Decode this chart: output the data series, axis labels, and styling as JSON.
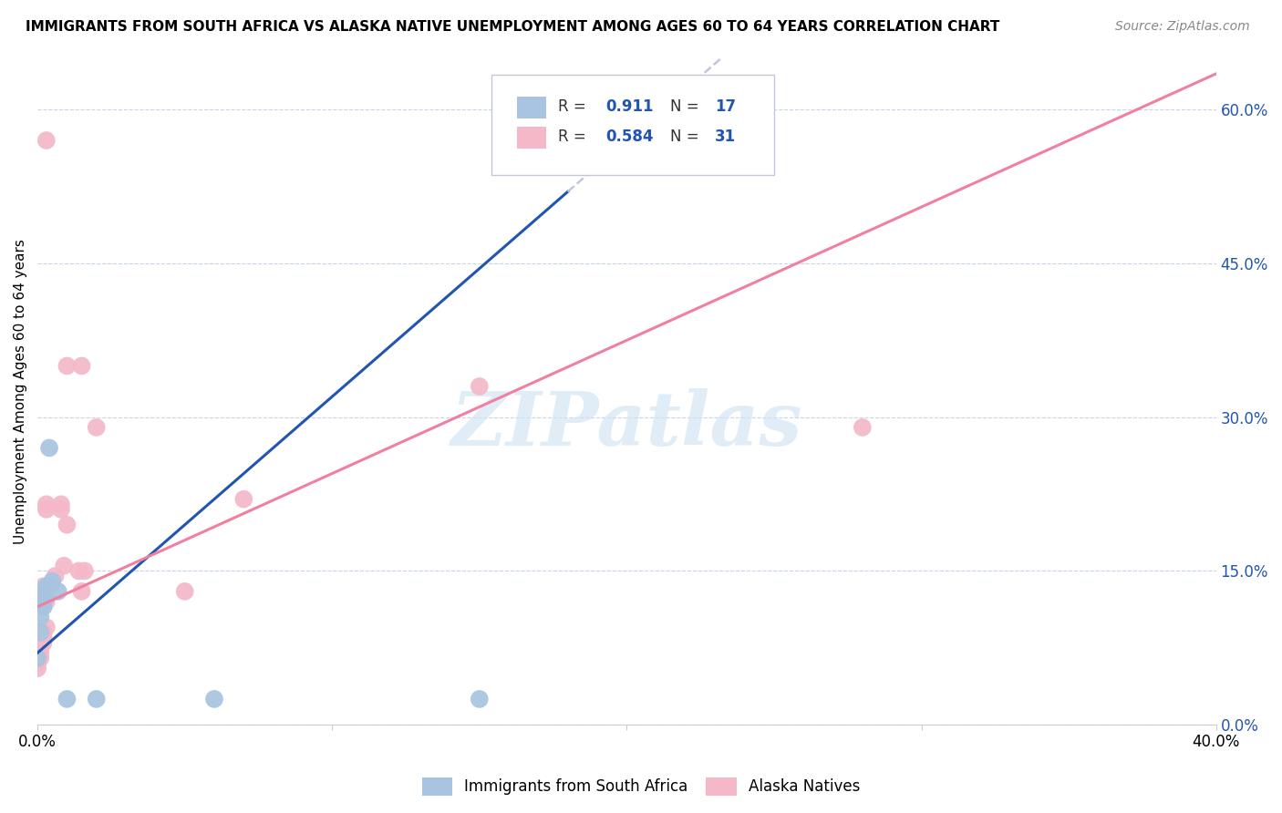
{
  "title": "IMMIGRANTS FROM SOUTH AFRICA VS ALASKA NATIVE UNEMPLOYMENT AMONG AGES 60 TO 64 YEARS CORRELATION CHART",
  "source": "Source: ZipAtlas.com",
  "ylabel": "Unemployment Among Ages 60 to 64 years",
  "xlim": [
    0.0,
    0.4
  ],
  "ylim": [
    0.0,
    0.65
  ],
  "right_yticks": [
    0.0,
    0.15,
    0.3,
    0.45,
    0.6
  ],
  "right_yticklabels": [
    "0.0%",
    "15.0%",
    "30.0%",
    "45.0%",
    "60.0%"
  ],
  "xticks": [
    0.0,
    0.1,
    0.2,
    0.3,
    0.4
  ],
  "xticklabels": [
    "0.0%",
    "",
    "",
    "",
    "40.0%"
  ],
  "blue_R": 0.911,
  "blue_N": 17,
  "pink_R": 0.584,
  "pink_N": 31,
  "blue_color": "#a8c4e0",
  "pink_color": "#f4b8c8",
  "blue_line_color": "#2255b0",
  "pink_line_color": "#f080a0",
  "blue_line": {
    "x0": 0.0,
    "y0": 0.07,
    "x1": 0.18,
    "y1": 0.52,
    "x_dash_end": 0.4
  },
  "pink_line": {
    "x0": 0.0,
    "y0": 0.115,
    "x1": 0.4,
    "y1": 0.635
  },
  "blue_scatter": [
    [
      0.0,
      0.065
    ],
    [
      0.001,
      0.09
    ],
    [
      0.001,
      0.105
    ],
    [
      0.002,
      0.115
    ],
    [
      0.002,
      0.12
    ],
    [
      0.002,
      0.125
    ],
    [
      0.003,
      0.125
    ],
    [
      0.003,
      0.13
    ],
    [
      0.003,
      0.135
    ],
    [
      0.004,
      0.135
    ],
    [
      0.004,
      0.27
    ],
    [
      0.005,
      0.14
    ],
    [
      0.007,
      0.13
    ],
    [
      0.01,
      0.025
    ],
    [
      0.02,
      0.025
    ],
    [
      0.06,
      0.025
    ],
    [
      0.15,
      0.025
    ]
  ],
  "pink_scatter": [
    [
      0.0,
      0.055
    ],
    [
      0.0,
      0.06
    ],
    [
      0.001,
      0.065
    ],
    [
      0.001,
      0.07
    ],
    [
      0.001,
      0.075
    ],
    [
      0.001,
      0.08
    ],
    [
      0.002,
      0.08
    ],
    [
      0.002,
      0.085
    ],
    [
      0.002,
      0.09
    ],
    [
      0.002,
      0.115
    ],
    [
      0.002,
      0.135
    ],
    [
      0.003,
      0.095
    ],
    [
      0.003,
      0.12
    ],
    [
      0.003,
      0.21
    ],
    [
      0.003,
      0.215
    ],
    [
      0.003,
      0.57
    ],
    [
      0.006,
      0.145
    ],
    [
      0.008,
      0.21
    ],
    [
      0.008,
      0.215
    ],
    [
      0.009,
      0.155
    ],
    [
      0.01,
      0.195
    ],
    [
      0.01,
      0.35
    ],
    [
      0.014,
      0.15
    ],
    [
      0.015,
      0.35
    ],
    [
      0.015,
      0.13
    ],
    [
      0.016,
      0.15
    ],
    [
      0.02,
      0.29
    ],
    [
      0.05,
      0.13
    ],
    [
      0.07,
      0.22
    ],
    [
      0.15,
      0.33
    ],
    [
      0.28,
      0.29
    ]
  ],
  "watermark_text": "ZIPatlas",
  "legend_label_blue": "Immigrants from South Africa",
  "legend_label_pink": "Alaska Natives"
}
